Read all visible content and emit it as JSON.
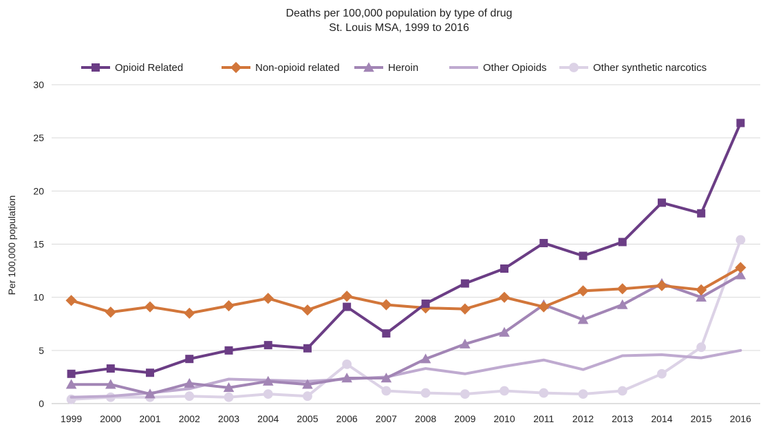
{
  "chart_data": {
    "type": "line",
    "title": "Deaths per 100,000 population by type of drug",
    "subtitle": "St. Louis MSA, 1999 to 2016",
    "xlabel": "",
    "ylabel": "Per 100,000 population",
    "ylim": [
      0,
      30
    ],
    "yticks": [
      "0",
      "5",
      "10",
      "15",
      "20",
      "25",
      "30"
    ],
    "grid": "horizontal",
    "legend_position": "top",
    "categories": [
      "1999",
      "2000",
      "2001",
      "2002",
      "2003",
      "2004",
      "2005",
      "2006",
      "2007",
      "2008",
      "2009",
      "2010",
      "2011",
      "2012",
      "2013",
      "2014",
      "2015",
      "2016"
    ],
    "series": [
      {
        "name": "Opioid Related",
        "color": "#6b3d85",
        "marker": "square",
        "values": [
          2.8,
          3.3,
          2.9,
          4.2,
          5.0,
          5.5,
          5.2,
          9.1,
          6.6,
          9.4,
          11.3,
          12.7,
          15.1,
          13.9,
          15.2,
          18.9,
          17.9,
          26.4
        ]
      },
      {
        "name": "Non-opioid related",
        "color": "#d2763a",
        "marker": "diamond",
        "values": [
          9.7,
          8.6,
          9.1,
          8.5,
          9.2,
          9.9,
          8.8,
          10.1,
          9.3,
          9.0,
          8.9,
          10.0,
          9.1,
          10.6,
          10.8,
          11.1,
          10.7,
          12.8
        ]
      },
      {
        "name": "Heroin",
        "color": "#a285b5",
        "marker": "triangle",
        "values": [
          1.8,
          1.8,
          0.9,
          1.9,
          1.5,
          2.1,
          1.8,
          2.4,
          2.4,
          4.2,
          5.6,
          6.7,
          9.3,
          7.9,
          9.3,
          11.3,
          10.0,
          12.1
        ]
      },
      {
        "name": "Other Opioids",
        "color": "#bfaad0",
        "marker": "none",
        "values": [
          0.6,
          0.7,
          1.0,
          1.4,
          2.3,
          2.2,
          2.1,
          2.3,
          2.5,
          3.3,
          2.8,
          3.5,
          4.1,
          3.2,
          4.5,
          4.6,
          4.3,
          5.0
        ]
      },
      {
        "name": "Other synthetic narcotics",
        "color": "#dcd2e6",
        "marker": "circle",
        "values": [
          0.4,
          0.6,
          0.6,
          0.7,
          0.6,
          0.9,
          0.7,
          3.7,
          1.2,
          1.0,
          0.9,
          1.2,
          1.0,
          0.9,
          1.2,
          2.8,
          5.3,
          15.4
        ]
      }
    ]
  }
}
